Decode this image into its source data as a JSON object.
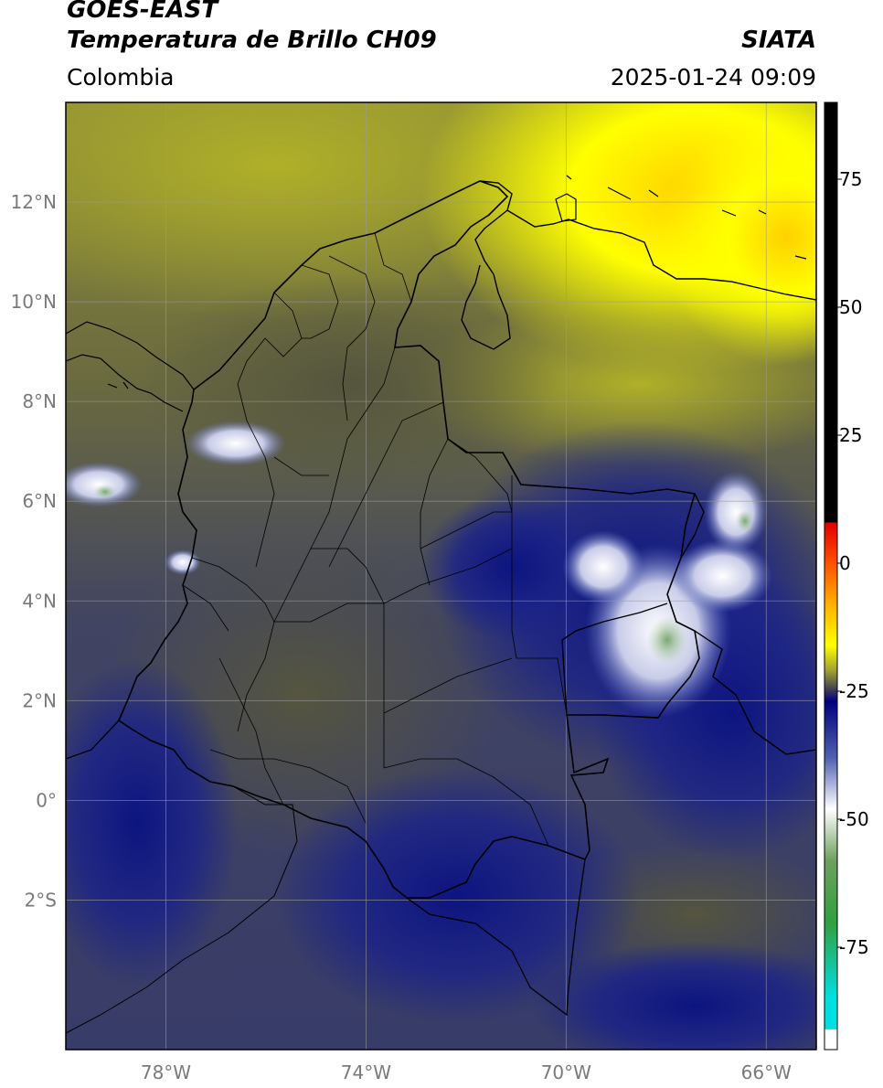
{
  "header": {
    "satellite": "GOES-EAST",
    "product": "Temperatura de Brillo CH09",
    "region": "Colombia",
    "org": "SIATA",
    "datetime": "2025-01-24 09:09"
  },
  "map": {
    "lon_range": [
      -80,
      -65
    ],
    "lat_range": [
      -5,
      14
    ],
    "lat_ticks": [
      {
        "value": 12,
        "label": "12°N"
      },
      {
        "value": 10,
        "label": "10°N"
      },
      {
        "value": 8,
        "label": "8°N"
      },
      {
        "value": 6,
        "label": "6°N"
      },
      {
        "value": 4,
        "label": "4°N"
      },
      {
        "value": 2,
        "label": "2°N"
      },
      {
        "value": 0,
        "label": "0°"
      },
      {
        "value": -2,
        "label": "2°S"
      }
    ],
    "lon_ticks": [
      {
        "value": -78,
        "label": "78°W"
      },
      {
        "value": -74,
        "label": "74°W"
      },
      {
        "value": -70,
        "label": "70°W"
      },
      {
        "value": -66,
        "label": "66°W"
      }
    ],
    "grid": true
  },
  "colorbar": {
    "range": [
      -95,
      90
    ],
    "ticks": [
      {
        "value": 75,
        "label": "75"
      },
      {
        "value": 50,
        "label": "50"
      },
      {
        "value": 25,
        "label": "25"
      },
      {
        "value": 0,
        "label": "0"
      },
      {
        "value": -25,
        "label": "-25"
      },
      {
        "value": -50,
        "label": "-50"
      },
      {
        "value": -75,
        "label": "-75"
      }
    ],
    "stops": [
      {
        "value": 90,
        "color": "#000000"
      },
      {
        "value": 8,
        "color": "#000000"
      },
      {
        "value": 7.9,
        "color": "#e00000"
      },
      {
        "value": 0,
        "color": "#ff5000"
      },
      {
        "value": -8,
        "color": "#ffb000"
      },
      {
        "value": -16,
        "color": "#ffff00"
      },
      {
        "value": -21,
        "color": "#a0a030"
      },
      {
        "value": -24,
        "color": "#505050"
      },
      {
        "value": -27,
        "color": "#000080"
      },
      {
        "value": -38,
        "color": "#5060b0"
      },
      {
        "value": -48,
        "color": "#ffffff"
      },
      {
        "value": -58,
        "color": "#70a060"
      },
      {
        "value": -70,
        "color": "#30a040"
      },
      {
        "value": -85,
        "color": "#00e0e0"
      },
      {
        "value": -91,
        "color": "#00e0e0"
      },
      {
        "value": -91.1,
        "color": "#ffffff"
      },
      {
        "value": -95,
        "color": "#ffffff"
      }
    ]
  }
}
